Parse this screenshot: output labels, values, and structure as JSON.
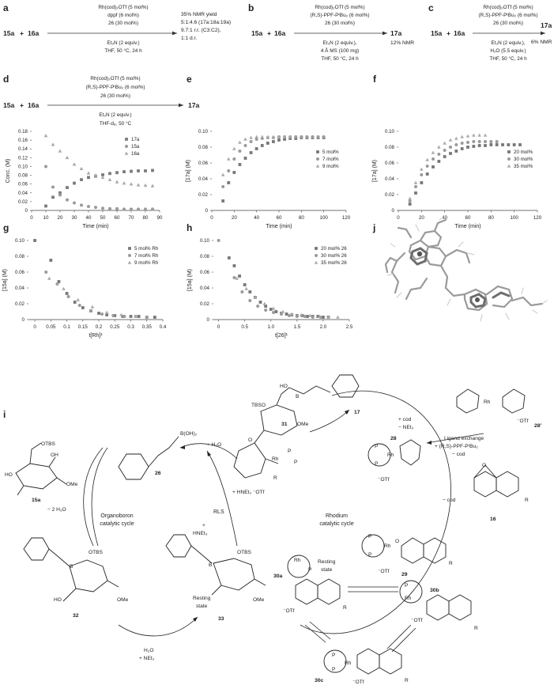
{
  "panels": {
    "a": {
      "letter": "a",
      "reactant1": "15a",
      "plus": "+",
      "reactant2": "16a",
      "cond_above": [
        "Rh(cod)₂OTf (5 mol%)",
        "dppf (6 mol%)",
        "26 (30 mol%)"
      ],
      "cond_below": [
        "Et₃N (2 equiv.)",
        "THF, 50 °C, 24 h"
      ],
      "outcome": [
        "35% NMR yield",
        "5:1:4.6 (17a:18a:19a)",
        "9.7:1 r.r. (C3:C2),",
        "1:1 d.r."
      ]
    },
    "b": {
      "letter": "b",
      "reactant1": "15a",
      "plus": "+",
      "reactant2": "16a",
      "cond_above": [
        "Rh(cod)₂OTf (5 mol%)",
        "(R,S)-PPF-PᵗBu₂ (6 mol%)",
        "26 (30 mol%)"
      ],
      "cond_below": [
        "Et₃N (2 equiv.),",
        "4 Å MS (100 mg)",
        "THF, 50 °C, 24 h"
      ],
      "product": "17a",
      "result": "12% NMR"
    },
    "c": {
      "letter": "c",
      "reactant1": "15a",
      "plus": "+",
      "reactant2": "16a",
      "cond_above": [
        "Rh(cod)₂OTf (5 mol%)",
        "(R,S)-PPF-PᵗBu₂ (6 mol%)",
        "26 (30 mol%)"
      ],
      "cond_below": [
        "Et₃N (2 equiv.),",
        "H₂O (5.5 equiv.)",
        "THF, 50 °C, 24 h"
      ],
      "product": "17a",
      "result": "6% NMR"
    },
    "d": {
      "letter": "d",
      "reactant1": "15a",
      "plus": "+",
      "reactant2": "16a",
      "cond_above": [
        "Rh(cod)₂OTf (5 mol%)",
        "(R,S)-PPF-PᵗBu₂ (6 mol%)",
        "26 (30 mol%)"
      ],
      "cond_below": [
        "Et₃N (2 equiv.)",
        "THF-d₈, 50 °C"
      ],
      "product": "17a"
    },
    "j": {
      "letter": "j"
    },
    "i": {
      "letter": "i",
      "labels": {
        "c15a": "15a",
        "c26": "26",
        "c32": "32",
        "c33": "33",
        "c31": "31",
        "c17": "17",
        "c28": "28",
        "c28p": "28′",
        "c16": "16",
        "c29": "29",
        "c30a": "30a",
        "c30b": "30b",
        "c30c": "30c"
      },
      "texts": {
        "boh2": "B(OH)₂",
        "otbs": "OTBS",
        "tbso": "TBSO",
        "ome": "OMe",
        "oh": "OH",
        "ho": "HO",
        "ho_b": "HO",
        "water_loss": "− 2 H₂O",
        "water_add": "+ H₂O",
        "hnet3": "HNEt₃",
        "hnet3_otf": "+ HNEt₃ ⁻OTf",
        "h2o_net3": "H₂O\n+ NEt₃",
        "cod_net3": "+ cod\n− NEt₃",
        "minus_cod": "− cod",
        "lig_ex": "Ligand exchange",
        "lig_ex2": "+ (R,S)-PPF-PᵗBu₂",
        "lig_ex3": "− cod",
        "otf": "⁻OTf",
        "rh": "Rh",
        "p": "P",
        "r": "R",
        "o": "O",
        "b": "B",
        "organo_cycle": "Organoboron\ncatalytic cycle",
        "rh_cycle": "Rhodium\ncatalytic cycle",
        "rls": "RLS",
        "resting": "Resting\nstate"
      }
    }
  },
  "chart_data": [
    {
      "id": "d",
      "type": "scatter",
      "xlabel": "Time (min)",
      "ylabel": "Conc. (M)",
      "xlim": [
        0,
        90
      ],
      "ylim": [
        0,
        0.18
      ],
      "xticks": [
        0,
        10,
        20,
        30,
        40,
        50,
        60,
        70,
        80,
        90
      ],
      "yticks": [
        0,
        0.02,
        0.04,
        0.06,
        0.08,
        0.1,
        0.12,
        0.14,
        0.16,
        0.18
      ],
      "ytick_labels": [
        "0",
        "0.02",
        "0.04",
        "0.06",
        "0.08",
        "0.10",
        "0.12",
        "0.14",
        "0.16",
        "0.18"
      ],
      "legend_position": "top-right",
      "series": [
        {
          "name": "17a",
          "marker": "square",
          "color": "#7a7a7a",
          "x": [
            10,
            15,
            20,
            25,
            30,
            35,
            40,
            45,
            50,
            55,
            60,
            65,
            70,
            75,
            80,
            85
          ],
          "y": [
            0.01,
            0.03,
            0.04,
            0.052,
            0.062,
            0.07,
            0.075,
            0.078,
            0.081,
            0.084,
            0.086,
            0.088,
            0.089,
            0.09,
            0.09,
            0.091
          ]
        },
        {
          "name": "15a",
          "marker": "circle",
          "color": "#9a9a9a",
          "x": [
            10,
            15,
            20,
            25,
            30,
            35,
            40,
            45,
            50,
            55,
            60,
            65,
            70,
            75,
            80,
            85
          ],
          "y": [
            0.1,
            0.053,
            0.035,
            0.024,
            0.017,
            0.012,
            0.009,
            0.007,
            0.005,
            0.004,
            0.004,
            0.003,
            0.003,
            0.003,
            0.003,
            0.003
          ]
        },
        {
          "name": "16a",
          "marker": "triangle",
          "color": "#a8a8a8",
          "x": [
            10,
            15,
            20,
            25,
            30,
            35,
            40,
            45,
            50,
            55,
            60,
            65,
            70,
            75,
            80,
            85
          ],
          "y": [
            0.17,
            0.15,
            0.135,
            0.12,
            0.105,
            0.095,
            0.085,
            0.08,
            0.075,
            0.07,
            0.065,
            0.062,
            0.06,
            0.058,
            0.057,
            0.056
          ]
        }
      ]
    },
    {
      "id": "e",
      "type": "scatter",
      "xlabel": "Time (min)",
      "ylabel": "[17a] (M)",
      "xlim": [
        0,
        120
      ],
      "ylim": [
        0,
        0.1
      ],
      "xticks": [
        0,
        20,
        40,
        60,
        80,
        100,
        120
      ],
      "yticks": [
        0,
        0.02,
        0.04,
        0.06,
        0.08,
        0.1
      ],
      "ytick_labels": [
        "0",
        "0.02",
        "0.04",
        "0.06",
        "0.08",
        "0.10"
      ],
      "legend_position": "middle-right",
      "series": [
        {
          "name": "5 mol%",
          "marker": "square",
          "color": "#777777",
          "x": [
            10,
            15,
            20,
            25,
            30,
            35,
            40,
            45,
            50,
            55,
            60,
            65,
            70,
            75,
            80,
            85,
            90,
            95,
            100
          ],
          "y": [
            0.012,
            0.035,
            0.048,
            0.058,
            0.066,
            0.073,
            0.078,
            0.082,
            0.085,
            0.087,
            0.089,
            0.09,
            0.091,
            0.091,
            0.092,
            0.092,
            0.092,
            0.092,
            0.092
          ]
        },
        {
          "name": "7 mol%",
          "marker": "circle",
          "color": "#9a9a9a",
          "x": [
            10,
            15,
            20,
            25,
            30,
            35,
            40,
            45,
            50,
            55,
            60,
            65,
            70,
            75,
            80,
            85,
            90,
            95,
            100
          ],
          "y": [
            0.03,
            0.05,
            0.065,
            0.075,
            0.082,
            0.087,
            0.09,
            0.091,
            0.092,
            0.092,
            0.093,
            0.093,
            0.093,
            0.093,
            0.093,
            0.093,
            0.093,
            0.093,
            0.093
          ]
        },
        {
          "name": "9 mol%",
          "marker": "triangle",
          "color": "#aaaaaa",
          "x": [
            10,
            15,
            20,
            25,
            30,
            35,
            40,
            45,
            50,
            55,
            60,
            65,
            70
          ],
          "y": [
            0.045,
            0.065,
            0.078,
            0.086,
            0.09,
            0.092,
            0.093,
            0.093,
            0.093,
            0.093,
            0.093,
            0.093,
            0.093
          ]
        }
      ]
    },
    {
      "id": "f",
      "type": "scatter",
      "xlabel": "Time (min)",
      "ylabel": "[17a] (M)",
      "xlim": [
        0,
        120
      ],
      "ylim": [
        0,
        0.1
      ],
      "xticks": [
        0,
        20,
        40,
        60,
        80,
        100,
        120
      ],
      "yticks": [
        0,
        0.02,
        0.04,
        0.06,
        0.08,
        0.1
      ],
      "ytick_labels": [
        "0",
        "0.02",
        "0.04",
        "0.06",
        "0.08",
        "0.10"
      ],
      "legend_position": "middle-right",
      "series": [
        {
          "name": "20 mol%",
          "marker": "square",
          "color": "#777777",
          "x": [
            10,
            15,
            20,
            25,
            30,
            35,
            40,
            45,
            50,
            55,
            60,
            65,
            70,
            75,
            80,
            85,
            90,
            95,
            100,
            105
          ],
          "y": [
            0.008,
            0.022,
            0.035,
            0.046,
            0.055,
            0.062,
            0.068,
            0.072,
            0.075,
            0.078,
            0.08,
            0.081,
            0.082,
            0.082,
            0.083,
            0.083,
            0.083,
            0.083,
            0.083,
            0.083
          ]
        },
        {
          "name": "30 mol%",
          "marker": "circle",
          "color": "#9a9a9a",
          "x": [
            10,
            15,
            20,
            25,
            30,
            35,
            40,
            45,
            50,
            55,
            60,
            65,
            70,
            75,
            80,
            85
          ],
          "y": [
            0.012,
            0.03,
            0.045,
            0.056,
            0.065,
            0.071,
            0.076,
            0.08,
            0.083,
            0.085,
            0.086,
            0.087,
            0.087,
            0.087,
            0.087,
            0.087
          ]
        },
        {
          "name": "35 mol%",
          "marker": "triangle",
          "color": "#aaaaaa",
          "x": [
            10,
            15,
            20,
            25,
            30,
            35,
            40,
            45,
            50,
            55,
            60,
            65,
            70,
            75
          ],
          "y": [
            0.015,
            0.035,
            0.052,
            0.064,
            0.073,
            0.08,
            0.085,
            0.089,
            0.091,
            0.093,
            0.094,
            0.095,
            0.095,
            0.095
          ]
        }
      ]
    },
    {
      "id": "g",
      "type": "scatter",
      "xlabel": "t[Rh]¹",
      "ylabel": "[15a] (M)",
      "xlim": [
        -0.02,
        0.4
      ],
      "ylim": [
        0,
        0.1
      ],
      "xticks": [
        0,
        0.05,
        0.1,
        0.15,
        0.2,
        0.25,
        0.3,
        0.35,
        0.4
      ],
      "xtick_labels": [
        "0",
        "0.05",
        "0.1",
        "0.15",
        "0.2",
        "0.25",
        "0.3",
        "0.35",
        "0.4"
      ],
      "yticks": [
        0,
        0.02,
        0.04,
        0.06,
        0.08,
        0.1
      ],
      "ytick_labels": [
        "0",
        "0.02",
        "0.04",
        "0.06",
        "0.08",
        "0.10"
      ],
      "legend_position": "top-right",
      "series": [
        {
          "name": "5 mol% Rh",
          "marker": "square",
          "color": "#777777",
          "x": [
            0,
            0.05,
            0.075,
            0.1,
            0.125,
            0.15,
            0.175,
            0.2,
            0.225,
            0.25,
            0.275,
            0.3,
            0.325,
            0.35,
            0.375
          ],
          "y": [
            0.1,
            0.075,
            0.048,
            0.033,
            0.022,
            0.015,
            0.011,
            0.008,
            0.006,
            0.005,
            0.004,
            0.004,
            0.004,
            0.003,
            0.003
          ]
        },
        {
          "name": "7 mol% Rh",
          "marker": "circle",
          "color": "#9a9a9a",
          "x": [
            0.035,
            0.07,
            0.105,
            0.14,
            0.175,
            0.21,
            0.245,
            0.28,
            0.315,
            0.35
          ],
          "y": [
            0.06,
            0.045,
            0.029,
            0.018,
            0.011,
            0.007,
            0.005,
            0.004,
            0.004,
            0.003
          ]
        },
        {
          "name": "9 mol% Rh",
          "marker": "triangle",
          "color": "#aaaaaa",
          "x": [
            0.045,
            0.09,
            0.135,
            0.18,
            0.225,
            0.27,
            0.315
          ],
          "y": [
            0.052,
            0.039,
            0.025,
            0.016,
            0.009,
            0.006,
            0.004
          ]
        }
      ]
    },
    {
      "id": "h",
      "type": "scatter",
      "xlabel": "t[26]¹",
      "ylabel": "[15a] (M)",
      "xlim": [
        -0.1,
        2.5
      ],
      "ylim": [
        0,
        0.1
      ],
      "xticks": [
        0,
        0.5,
        1.0,
        1.5,
        2.0,
        2.5
      ],
      "xtick_labels": [
        "0",
        "0.5",
        "1.0",
        "1.5",
        "2.0",
        "2.5"
      ],
      "yticks": [
        0,
        0.02,
        0.04,
        0.06,
        0.08,
        0.1
      ],
      "ytick_labels": [
        "0",
        "0.02",
        "0.04",
        "0.06",
        "0.08",
        "0.10"
      ],
      "legend_position": "top-right",
      "series": [
        {
          "name": "20 mol% 26",
          "marker": "square",
          "color": "#777777",
          "x": [
            0.2,
            0.3,
            0.4,
            0.5,
            0.6,
            0.7,
            0.8,
            0.9,
            1.0,
            1.1,
            1.2,
            1.3,
            1.4,
            1.5,
            1.6,
            1.7,
            1.8,
            1.9,
            2.0,
            2.1
          ],
          "y": [
            0.078,
            0.068,
            0.055,
            0.044,
            0.035,
            0.028,
            0.022,
            0.017,
            0.013,
            0.01,
            0.008,
            0.007,
            0.006,
            0.005,
            0.005,
            0.004,
            0.004,
            0.004,
            0.003,
            0.003
          ]
        },
        {
          "name": "30 mol% 26",
          "marker": "circle",
          "color": "#9a9a9a",
          "x": [
            0,
            0.3,
            0.45,
            0.6,
            0.75,
            0.9,
            1.05,
            1.2,
            1.35,
            1.5,
            1.65,
            1.8,
            1.95
          ],
          "y": [
            0.1,
            0.053,
            0.035,
            0.024,
            0.017,
            0.012,
            0.009,
            0.007,
            0.005,
            0.004,
            0.004,
            0.003,
            0.003
          ]
        },
        {
          "name": "35 mol% 26",
          "marker": "triangle",
          "color": "#aaaaaa",
          "x": [
            0.35,
            0.53,
            0.7,
            0.88,
            1.05,
            1.23,
            1.4,
            1.58,
            1.75,
            1.93,
            2.1,
            2.28
          ],
          "y": [
            0.052,
            0.039,
            0.028,
            0.02,
            0.014,
            0.01,
            0.007,
            0.006,
            0.005,
            0.004,
            0.003,
            0.003
          ]
        }
      ]
    }
  ]
}
